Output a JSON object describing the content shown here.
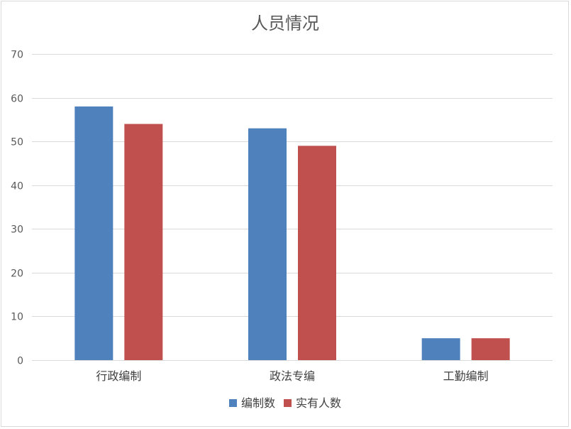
{
  "chart_data": {
    "type": "bar",
    "title": "人员情况",
    "categories": [
      "行政编制",
      "政法专编",
      "工勤编制"
    ],
    "series": [
      {
        "name": "编制数",
        "values": [
          58,
          53,
          5
        ],
        "color": "#4f81bd"
      },
      {
        "name": "实有人数",
        "values": [
          54,
          49,
          5
        ],
        "color": "#c0504d"
      }
    ],
    "ylim": [
      0,
      70
    ],
    "yticks": [
      0,
      10,
      20,
      30,
      40,
      50,
      60,
      70
    ],
    "grid": true,
    "legend": "bottom"
  }
}
